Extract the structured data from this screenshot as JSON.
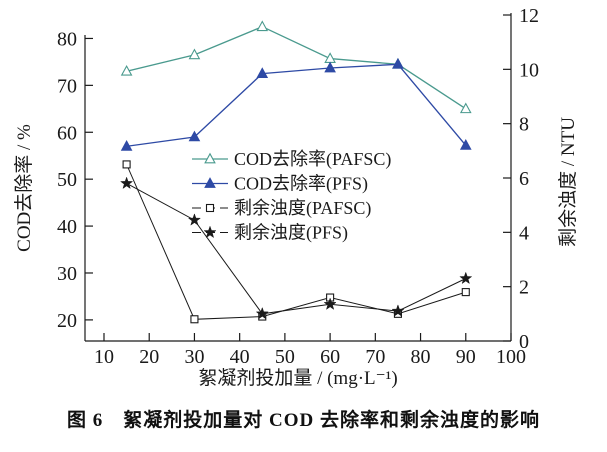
{
  "figure": {
    "caption": "图 6　絮凝剂投加量对 COD 去除率和剩余浊度的影响"
  },
  "colors": {
    "axis": "#1a1a1a",
    "background": "#ffffff",
    "teal": "#4a9a8e",
    "blue": "#2e4aa5",
    "black": "#1a1a1a"
  },
  "chart_data": {
    "type": "line",
    "x": [
      15,
      30,
      45,
      60,
      75,
      90
    ],
    "x_axis": {
      "label": "絮凝剂投加量 / (mg·L⁻¹)",
      "ticks": [
        10,
        20,
        30,
        40,
        50,
        60,
        70,
        80,
        90,
        100
      ],
      "range": [
        5.8,
        100
      ]
    },
    "left_axis": {
      "label": "COD去除率 / %",
      "ticks": [
        20,
        30,
        40,
        50,
        60,
        70,
        80
      ],
      "range": [
        15.5,
        85
      ]
    },
    "right_axis": {
      "label": "剩余浊度 / NTU",
      "ticks": [
        0,
        2,
        4,
        6,
        8,
        10,
        12
      ],
      "range": [
        0,
        12
      ]
    },
    "grid": false,
    "legend_position": "inside-middle-right",
    "series": [
      {
        "name": "COD去除率(PAFSC)",
        "axis": "left",
        "marker": "triangle-open",
        "color": "#4a9a8e",
        "line": "solid",
        "values": [
          73,
          76.5,
          82.5,
          75.7,
          74.5,
          65
        ]
      },
      {
        "name": "COD去除率(PFS)",
        "axis": "left",
        "marker": "triangle-filled",
        "color": "#2e4aa5",
        "line": "solid",
        "values": [
          57,
          59,
          72.5,
          73.7,
          74.5,
          57.2
        ]
      },
      {
        "name": "剩余浊度(PAFSC)",
        "axis": "right",
        "marker": "square-open",
        "color": "#1a1a1a",
        "line": "solid",
        "legend_dash": true,
        "values": [
          6.5,
          0.8,
          0.9,
          1.6,
          1.0,
          1.8
        ]
      },
      {
        "name": "剩余浊度(PFS)",
        "axis": "right",
        "marker": "star-filled",
        "color": "#1a1a1a",
        "line": "solid",
        "legend_dash": true,
        "values": [
          5.8,
          4.45,
          1.0,
          1.35,
          1.1,
          2.3
        ]
      }
    ]
  }
}
